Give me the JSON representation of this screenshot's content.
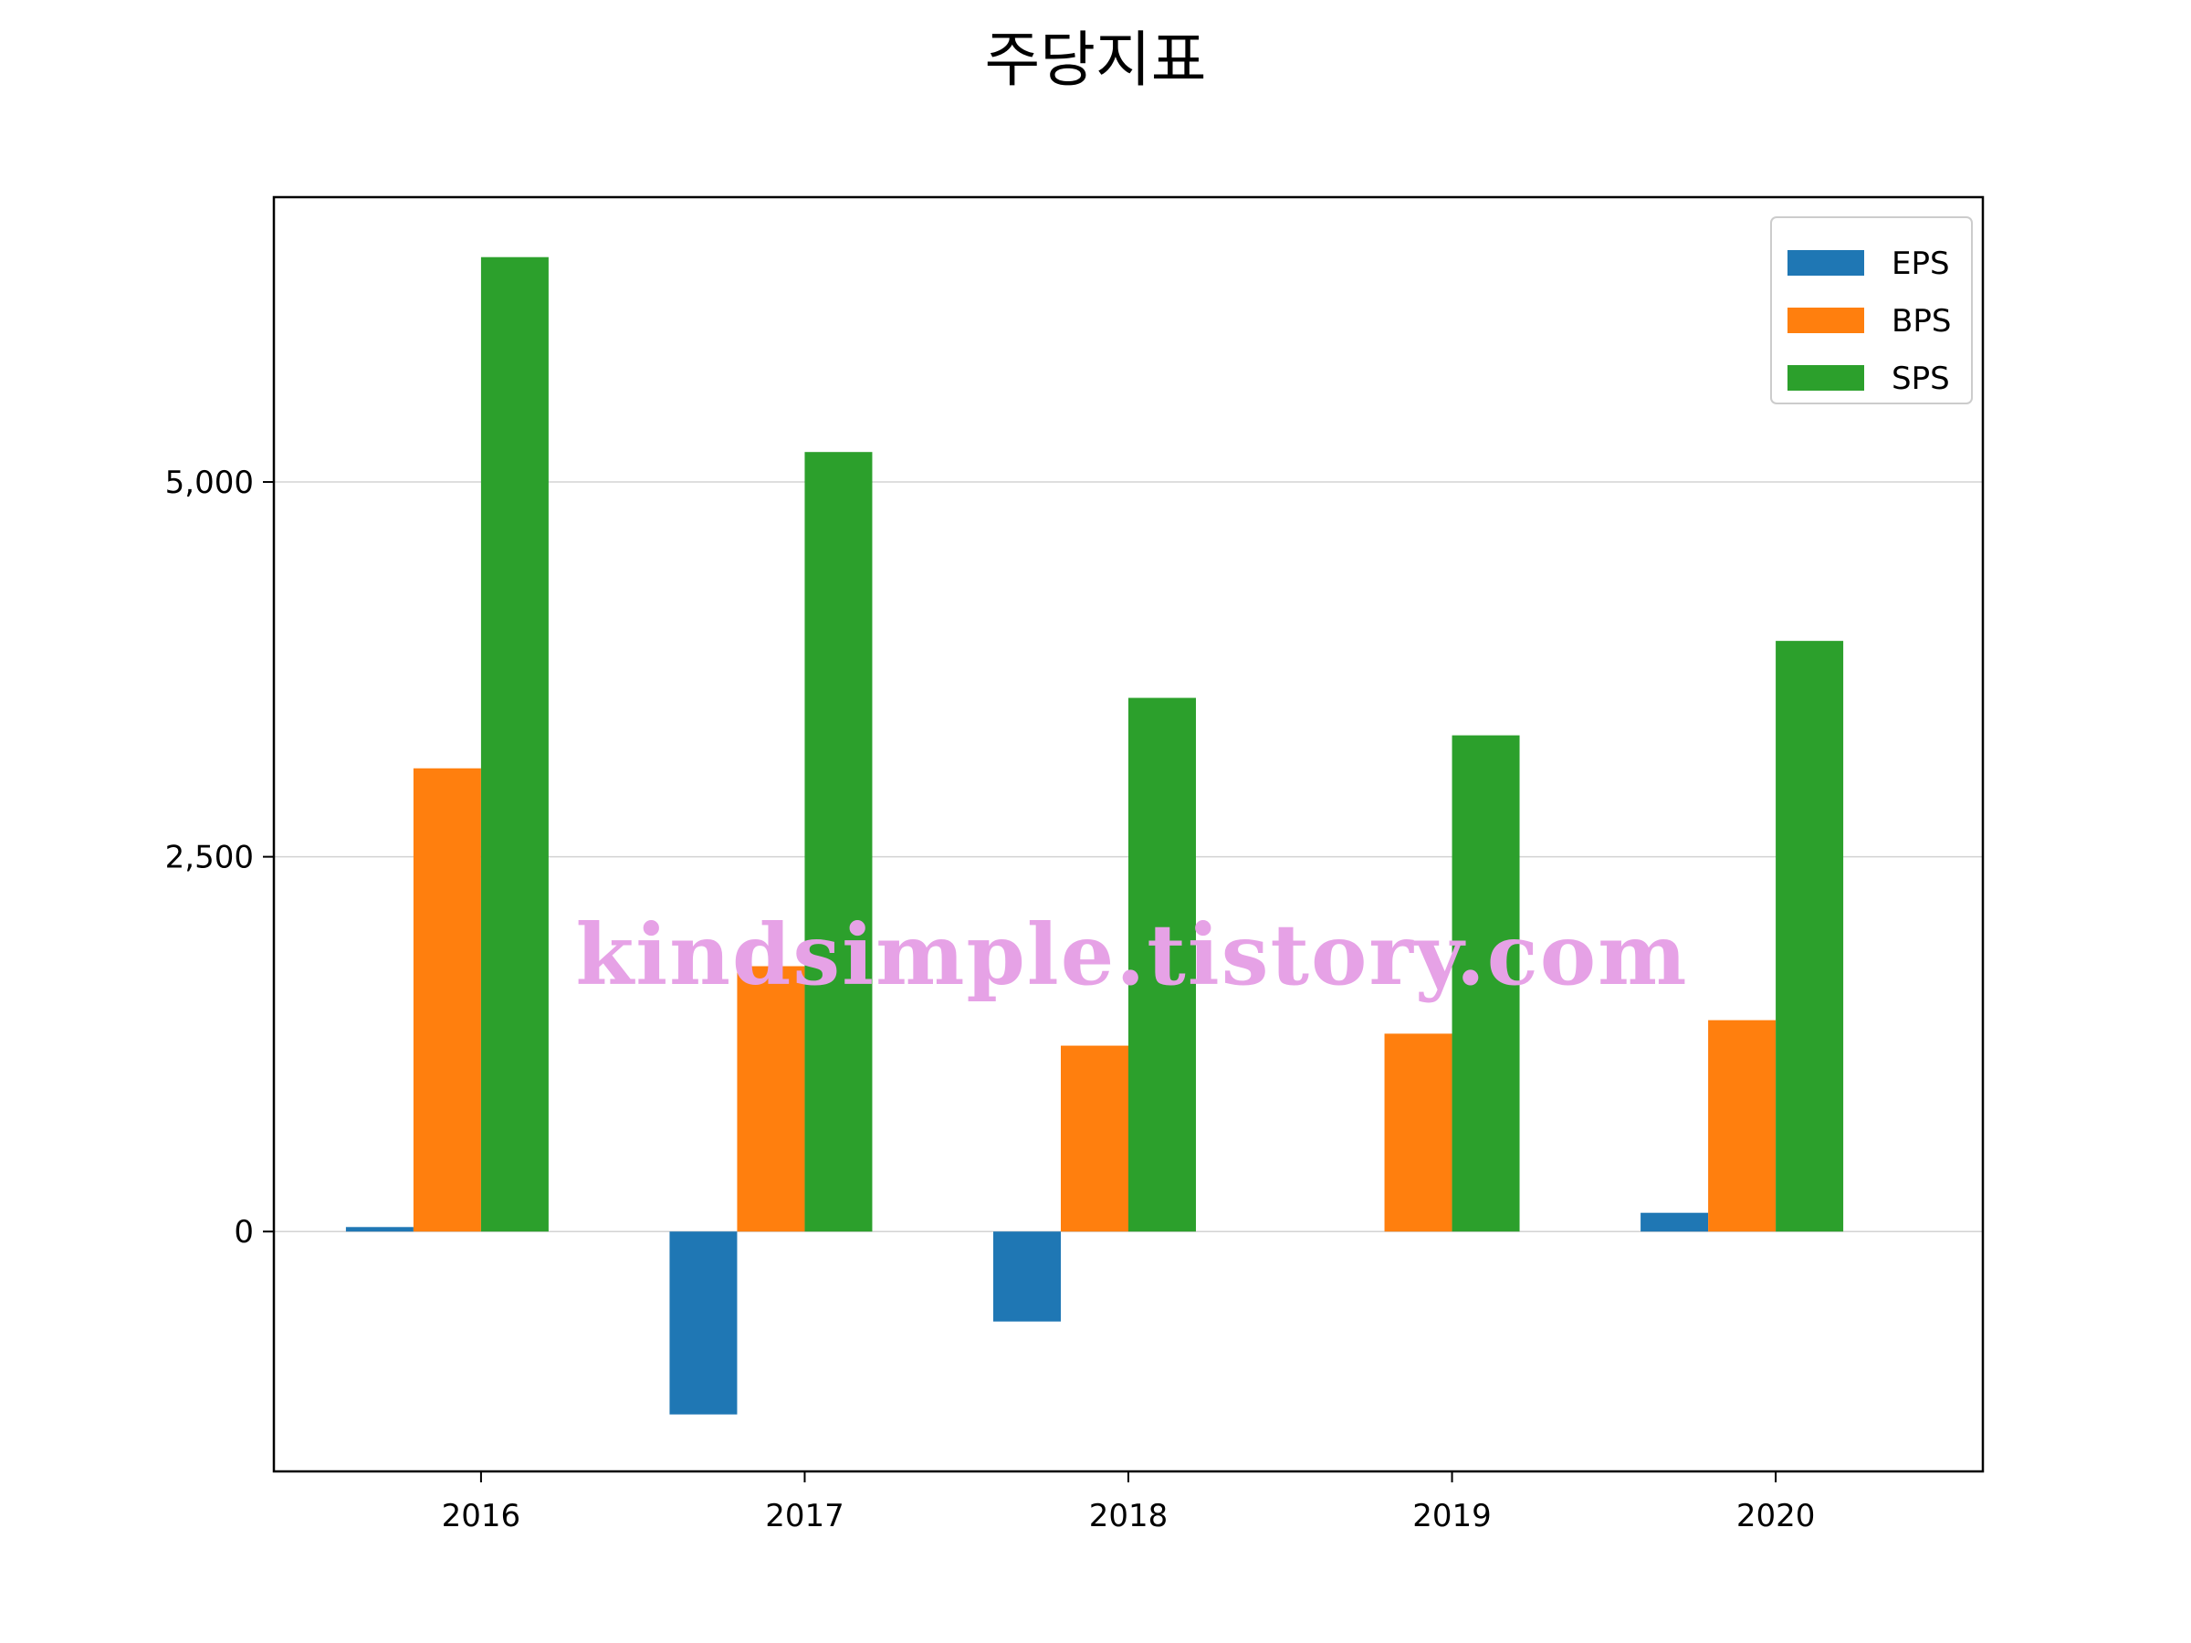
{
  "chart_data": {
    "type": "bar",
    "title": "주당지표",
    "categories": [
      "2016",
      "2017",
      "2018",
      "2019",
      "2020"
    ],
    "series": [
      {
        "name": "EPS",
        "color": "#1f77b4",
        "values": [
          30,
          -1220,
          -600,
          0,
          125
        ]
      },
      {
        "name": "BPS",
        "color": "#ff7f0e",
        "values": [
          3090,
          1770,
          1240,
          1320,
          1410
        ]
      },
      {
        "name": "SPS",
        "color": "#2ca02c",
        "values": [
          6500,
          5200,
          3560,
          3310,
          3940
        ]
      }
    ],
    "yticks": [
      0,
      2500,
      5000
    ],
    "ytick_labels": [
      "0",
      "2,500",
      "5,000"
    ],
    "ylim": [
      -1600,
      6900
    ],
    "grid": "horizontal",
    "legend_position": "top-right",
    "xlabel": "",
    "ylabel": ""
  },
  "watermark": "kindsimple.tistory.com"
}
